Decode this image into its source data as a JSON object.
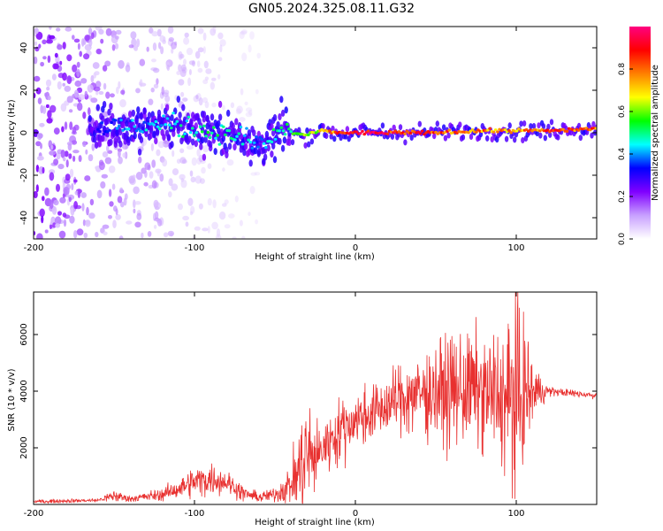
{
  "figure_title": "GN05.2024.325.08.11.G32",
  "chart_data": [
    {
      "type": "heatmap",
      "xlabel": "Height of straight line (km)",
      "ylabel": "Frequency (Hz)",
      "xlim": [
        -200,
        150
      ],
      "ylim": [
        -50,
        50
      ],
      "xticks": [
        -200,
        -100,
        0,
        100
      ],
      "yticks": [
        -40,
        -20,
        0,
        20,
        40
      ],
      "colorbar": {
        "label": "Normalized spectral amplitude",
        "range": [
          0,
          1
        ],
        "ticks": [
          0.0,
          0.2,
          0.4,
          0.6,
          0.8
        ],
        "colors": [
          "#ffffff",
          "#c8a0ff",
          "#8000ff",
          "#0000ff",
          "#00ffff",
          "#00ff00",
          "#ffff00",
          "#ff8000",
          "#ff0000",
          "#ff0080"
        ]
      },
      "ridge": {
        "x": [
          -160,
          -140,
          -120,
          -100,
          -80,
          -70,
          -60,
          -55,
          -50,
          -45,
          -40,
          -30,
          -20,
          -10,
          0,
          20,
          50,
          80,
          100,
          120,
          150
        ],
        "y": [
          2,
          3,
          4,
          2,
          0,
          -2,
          -6,
          -5,
          -2,
          2,
          0,
          -1,
          1,
          0,
          0,
          0,
          0,
          1,
          1,
          1,
          2
        ],
        "amplitude": [
          0.35,
          0.4,
          0.45,
          0.5,
          0.5,
          0.45,
          0.4,
          0.45,
          0.5,
          0.5,
          0.55,
          0.6,
          0.7,
          0.85,
          0.95,
          0.9,
          0.85,
          0.8,
          0.75,
          0.85,
          0.8
        ]
      },
      "scatter_region": {
        "x": [
          -200,
          -60
        ],
        "y": [
          -50,
          50
        ],
        "amplitude": [
          0.05,
          0.25
        ]
      }
    },
    {
      "type": "line",
      "xlabel": "Height of straight line (km)",
      "ylabel": "SNR (10 * v/v)",
      "xlim": [
        -200,
        150
      ],
      "ylim": [
        0,
        7500
      ],
      "xticks": [
        -200,
        -100,
        0,
        100
      ],
      "yticks": [
        2000,
        4000,
        6000
      ],
      "color": "#e8302f",
      "envelope": {
        "x": [
          -200,
          -160,
          -150,
          -140,
          -120,
          -110,
          -100,
          -90,
          -80,
          -70,
          -60,
          -50,
          -40,
          -35,
          -30,
          -25,
          -20,
          -10,
          0,
          10,
          20,
          30,
          40,
          50,
          60,
          70,
          80,
          90,
          95,
          100,
          105,
          110,
          120,
          130,
          140,
          150
        ],
        "mean": [
          100,
          150,
          300,
          200,
          350,
          550,
          800,
          900,
          800,
          400,
          250,
          350,
          700,
          1200,
          1800,
          1600,
          2000,
          2600,
          3000,
          3200,
          3500,
          3800,
          3900,
          4000,
          4000,
          4100,
          3900,
          3800,
          3700,
          3800,
          3900,
          4000,
          4000,
          3950,
          3900,
          3850
        ],
        "spread": [
          60,
          60,
          200,
          100,
          200,
          300,
          500,
          500,
          400,
          250,
          150,
          250,
          600,
          1500,
          2000,
          1000,
          900,
          1000,
          900,
          900,
          900,
          1200,
          1300,
          1500,
          1800,
          1800,
          1800,
          2200,
          2500,
          3200,
          2500,
          1000,
          150,
          120,
          120,
          120
        ]
      }
    }
  ]
}
